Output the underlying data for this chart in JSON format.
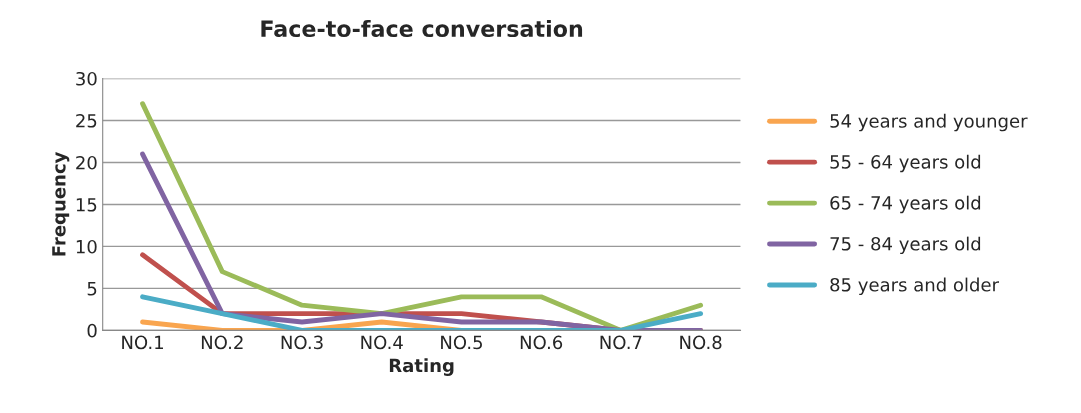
{
  "chart_data": {
    "type": "line",
    "title": "Face-to-face conversation",
    "xlabel": "Rating",
    "ylabel": "Frequency",
    "categories": [
      "NO.1",
      "NO.2",
      "NO.3",
      "NO.4",
      "NO.5",
      "NO.6",
      "NO.7",
      "NO.8"
    ],
    "series": [
      {
        "name": "54 years and younger",
        "color": "#f9a54f",
        "values": [
          1,
          0,
          0,
          1,
          0,
          0,
          null,
          null
        ]
      },
      {
        "name": "55 - 64 years old",
        "color": "#c0504d",
        "values": [
          9,
          2,
          2,
          2,
          2,
          1,
          0,
          0
        ]
      },
      {
        "name": "65 - 74 years old",
        "color": "#9bbb59",
        "values": [
          27,
          7,
          3,
          2,
          4,
          4,
          0,
          3
        ]
      },
      {
        "name": "75 - 84 years old",
        "color": "#8064a2",
        "values": [
          21,
          2,
          1,
          2,
          1,
          1,
          0,
          0
        ]
      },
      {
        "name": "85 years and older",
        "color": "#4bacc6",
        "values": [
          4,
          2,
          0,
          0,
          0,
          0,
          0,
          2
        ]
      }
    ],
    "ylim": [
      0,
      30
    ],
    "yticks": [
      0,
      5,
      10,
      15,
      20,
      25,
      30
    ],
    "grid": "y",
    "legend": "right",
    "marker": "none",
    "line_style": "solid"
  }
}
